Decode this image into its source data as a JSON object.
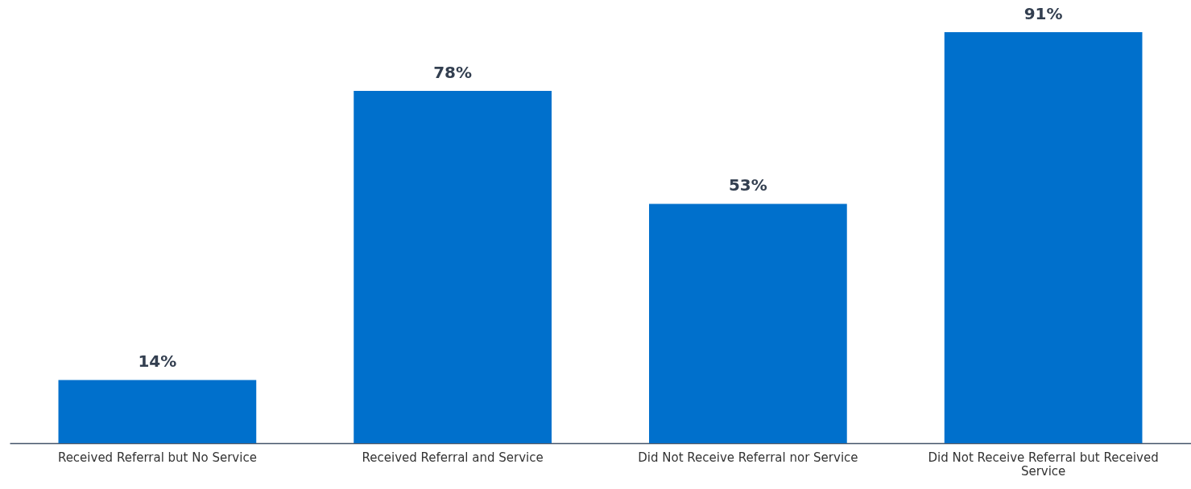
{
  "chart_data": {
    "type": "bar",
    "categories": [
      "Received Referral but No Service",
      "Received Referral and Service",
      "Did Not Receive Referral nor Service",
      "Did Not Receive Referral but Received Service"
    ],
    "values": [
      14,
      78,
      53,
      91
    ],
    "value_labels": [
      "14%",
      "78%",
      "53%",
      "91%"
    ],
    "color": "#0070cc"
  }
}
